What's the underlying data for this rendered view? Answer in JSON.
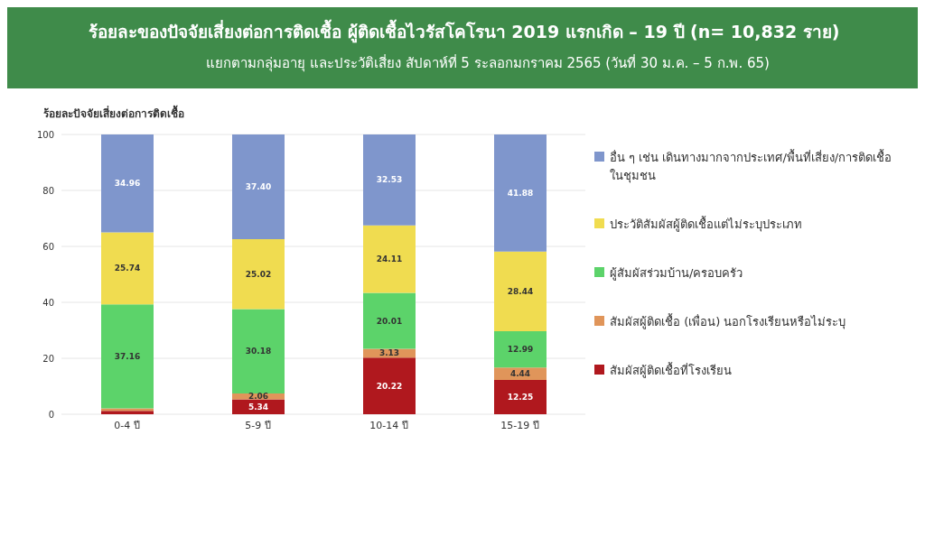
{
  "chart_data": {
    "type": "bar",
    "title": "ร้อยละของปัจจัยเสี่ยงต่อการติดเชื้อ ผู้ติดเชื้อไวรัสโคโรนา 2019 แรกเกิด – 19 ปี  (n= 10,832 ราย)",
    "subtitle": "แยกตามกลุ่มอายุ และประวัติเสี่ยง สัปดาห์ที่ 5 ระลอกมกราคม 2565 (วันที่ 30 ม.ค. – 5 ก.พ. 65)",
    "ylabel": "ร้อยละปัจจัยเสี่ยงต่อการติดเชื้อ",
    "categories": [
      "0-4 ปี",
      "5-9 ปี",
      "10-14 ปี",
      "15-19 ปี"
    ],
    "stacked": true,
    "series": [
      {
        "name": "สัมผัสผู้ติดเชื้อที่โรงเรียน",
        "color": "#b0181e",
        "values": [
          1.2,
          5.34,
          20.22,
          12.25
        ],
        "value_labels": [
          null,
          "5.34",
          "20.22",
          "12.25"
        ]
      },
      {
        "name": "สัมผัสผู้ติดเชื้อ (เพื่อน) นอกโรงเรียนหรือไม่ระบุ",
        "color": "#e0955a",
        "values": [
          0.9,
          2.06,
          3.13,
          4.44
        ],
        "value_labels": [
          null,
          "2.06",
          "3.13",
          "4.44"
        ]
      },
      {
        "name": "ผู้สัมผัสร่วมบ้าน/ครอบครัว",
        "color": "#5cd36a",
        "values": [
          37.16,
          30.18,
          20.01,
          12.99
        ],
        "value_labels": [
          "37.16",
          "30.18",
          "20.01",
          "12.99"
        ]
      },
      {
        "name": "ประวัติสัมผัสผู้ติดเชื้อแต่ไม่ระบุประเภท",
        "color": "#f0dc50",
        "values": [
          25.74,
          25.02,
          24.11,
          28.44
        ],
        "value_labels": [
          "25.74",
          "25.02",
          "24.11",
          "28.44"
        ]
      },
      {
        "name": "อื่น ๆ เช่น เดินทางมากจากประเทศ/พื้นที่เสี่ยง/การติดเชื้อในชุมชน",
        "color": "#7f96cc",
        "values": [
          34.96,
          37.4,
          32.53,
          41.88
        ],
        "value_labels": [
          "34.96",
          "37.40",
          "32.53",
          "41.88"
        ]
      }
    ],
    "ylim": [
      0,
      100
    ],
    "yticks": [
      0,
      20,
      40,
      60,
      80,
      100
    ],
    "grid": "y",
    "legend": "right"
  }
}
